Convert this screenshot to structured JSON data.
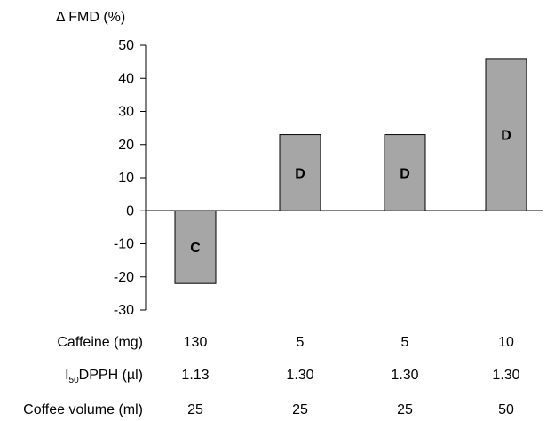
{
  "chart_data": {
    "type": "bar",
    "ylabel": "Δ FMD (%)",
    "xlabel": "",
    "ylim": [
      -30,
      50
    ],
    "yticks": [
      50,
      40,
      30,
      20,
      10,
      0,
      -10,
      -20,
      -30
    ],
    "grid": false,
    "categories": [
      "C",
      "D",
      "D",
      "D"
    ],
    "values": [
      -22,
      23,
      23,
      46
    ],
    "bar_labels": [
      "C",
      "D",
      "D",
      "D"
    ],
    "bar_color": "#a6a6a6",
    "table": [
      {
        "label": "Caffeine (mg)",
        "values": [
          "130",
          "5",
          "5",
          "10"
        ]
      },
      {
        "label_prefix": "I",
        "label_sub": "50",
        "label_rest": "DPPH (µl)",
        "values": [
          "1.13",
          "1.30",
          "1.30",
          "1.30"
        ]
      },
      {
        "label": "Coffee volume (ml)",
        "values": [
          "25",
          "25",
          "25",
          "50"
        ]
      }
    ]
  }
}
